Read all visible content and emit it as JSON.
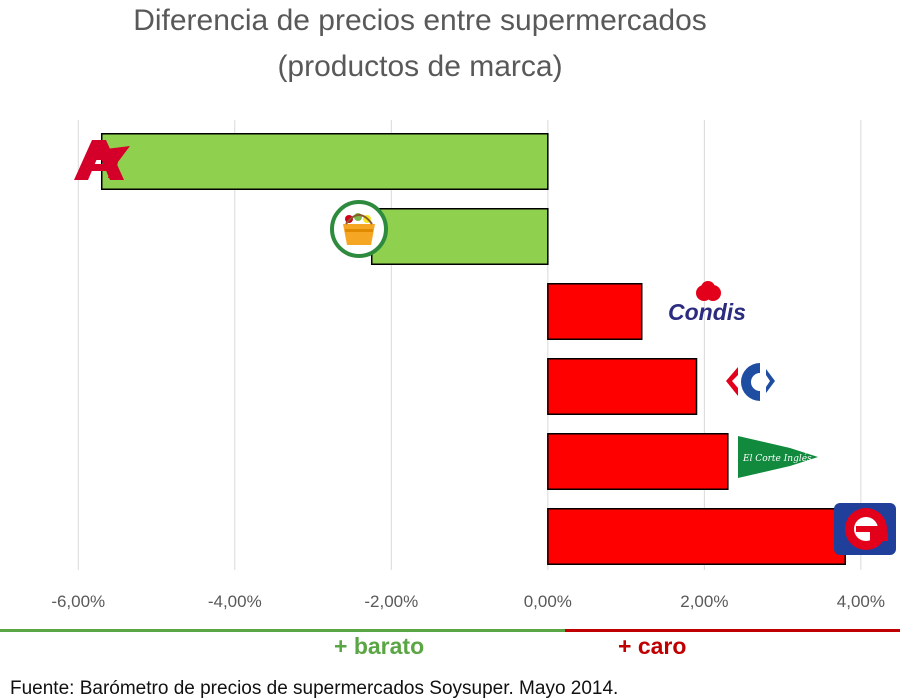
{
  "chart_data": {
    "type": "bar",
    "orientation": "horizontal",
    "title": "Diferencia de precios entre supermercados",
    "subtitle": "(productos de marca)",
    "categories": [
      "Alcampo",
      "Mercadona",
      "Condis",
      "Carrefour",
      "El Corte Inglés",
      "Eroski"
    ],
    "values": [
      -5.7,
      -2.25,
      1.2,
      1.9,
      2.3,
      3.8
    ],
    "unit": "%",
    "xlim": [
      -7.0,
      4.5
    ],
    "xticks": [
      -6,
      -4,
      -2,
      0,
      2,
      4
    ],
    "xtick_labels": [
      "-6,00%",
      "-4,00%",
      "-2,00%",
      "0,00%",
      "2,00%",
      "4,00%"
    ],
    "grid": true,
    "colors": {
      "negative": "#8fd14f",
      "positive": "#ff0000",
      "outline": "#000000",
      "grid": "#d9d9d9"
    }
  },
  "footer": {
    "cheaper_label": "+ barato",
    "cheaper_color": "#5aa544",
    "expensive_label": "+ caro",
    "expensive_color": "#c00000",
    "source": "Fuente: Barómetro de precios de supermercados Soysuper. Mayo 2014."
  },
  "logos": {
    "Alcampo": {
      "icon": "alcampo-logo-icon",
      "color": "#d4002a"
    },
    "Mercadona": {
      "icon": "mercadona-logo-icon",
      "color": "#2e8b3e"
    },
    "Condis": {
      "icon": "condis-logo-icon",
      "text": "Condis",
      "color": "#2b2b7f"
    },
    "Carrefour": {
      "icon": "carrefour-logo-icon",
      "color": "#1f4da1"
    },
    "El Corte Inglés": {
      "icon": "corte-ingles-logo-icon",
      "text": "El Corte Inglés",
      "color": "#118a3e"
    },
    "Eroski": {
      "icon": "eroski-logo-icon",
      "color": "#e3001b"
    }
  }
}
